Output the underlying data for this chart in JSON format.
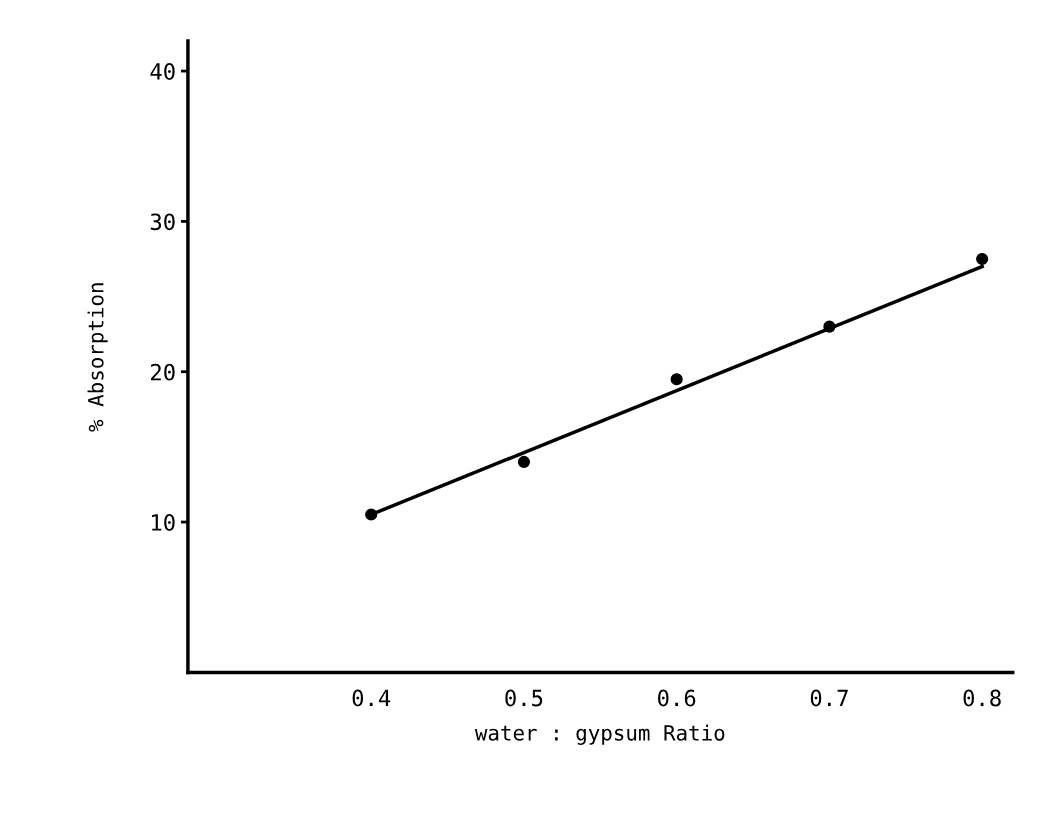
{
  "chart_data": {
    "type": "scatter",
    "xlabel": "water : gypsum Ratio",
    "ylabel": "% Absorption",
    "xlim": [
      0.28,
      0.82
    ],
    "ylim": [
      0,
      42
    ],
    "xticks": [
      0.4,
      0.5,
      0.6,
      0.7,
      0.8
    ],
    "yticks": [
      10,
      20,
      30,
      40
    ],
    "grid": false,
    "legend": false,
    "series": [
      {
        "marker": "circle",
        "color": "#000000",
        "x": [
          0.4,
          0.5,
          0.6,
          0.7,
          0.8
        ],
        "values": [
          10.5,
          14,
          19.5,
          23,
          27.5
        ]
      },
      {
        "type": "line",
        "marker": "none",
        "color": "#000000",
        "x": [
          0.4,
          0.8
        ],
        "values": [
          10.5,
          27
        ]
      }
    ]
  }
}
